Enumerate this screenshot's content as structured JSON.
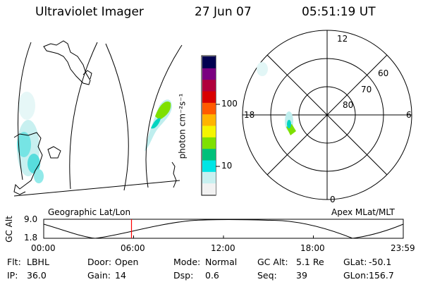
{
  "header": {
    "instrument": "Ultraviolet Imager",
    "date": "27 Jun 07",
    "time": "05:51:19 UT"
  },
  "colorbar": {
    "unit_label": "photon cm⁻²s⁻¹",
    "ticks": [
      "100",
      "10"
    ],
    "scale": "log",
    "colors": [
      "#f2f2f2",
      "#c8f0f0",
      "#00e5e5",
      "#00c07a",
      "#7ee000",
      "#f5f500",
      "#ffb400",
      "#ff5a00",
      "#d80000",
      "#b0003c",
      "#7a0080",
      "#000050"
    ]
  },
  "geographic_map": {
    "label": "Geographic Lat/Lon"
  },
  "polar_plot": {
    "label": "Apex MLat/MLT",
    "mlt_labels": {
      "top": "12",
      "left": "18",
      "right": "6",
      "bottom": "0"
    },
    "lat_labels": [
      "60",
      "70",
      "80"
    ]
  },
  "altitude_plot": {
    "ylabel": "GC Alt",
    "y_ticks": [
      "9.0",
      "1.8"
    ],
    "x_ticks": [
      "00:00",
      "06:00",
      "12:00",
      "18:00",
      "23:59"
    ],
    "current_time_marker": "05:51:19",
    "marker_color": "#ff0000"
  },
  "info_rows": [
    [
      {
        "label": "Flt:",
        "value": "LBHL"
      },
      {
        "label": "Door:",
        "value": "Open"
      },
      {
        "label": "Mode:",
        "value": "Normal"
      },
      {
        "label": "GC Alt:",
        "value": "5.1 Re"
      },
      {
        "label": "GLat:",
        "value": "-50.1"
      }
    ],
    [
      {
        "label": "IP:",
        "value": "36.0"
      },
      {
        "label": "Gain:",
        "value": "14"
      },
      {
        "label": "Dsp:",
        "value": "0.6"
      },
      {
        "label": "Seq:",
        "value": "39"
      },
      {
        "label": "GLon:",
        "value": "156.7"
      }
    ]
  ]
}
